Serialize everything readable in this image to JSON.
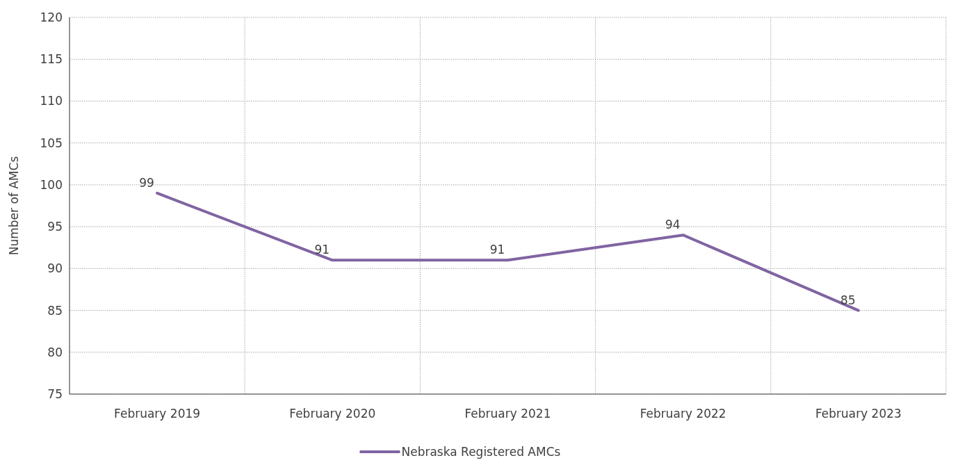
{
  "chart_data": {
    "type": "line",
    "ylabel": "Number of AMCs",
    "categories": [
      "February 2019",
      "February 2020",
      "February 2021",
      "February 2022",
      "February 2023"
    ],
    "series": [
      {
        "name": "Nebraska Registered AMCs",
        "color": "#8064a2",
        "values": [
          99,
          91,
          91,
          94,
          85
        ]
      }
    ],
    "ylim": [
      75,
      120
    ],
    "yticks": [
      75,
      80,
      85,
      90,
      95,
      100,
      105,
      110,
      115,
      120
    ],
    "grid": true,
    "legend": "bottom",
    "data_labels": true,
    "marker": "none"
  }
}
